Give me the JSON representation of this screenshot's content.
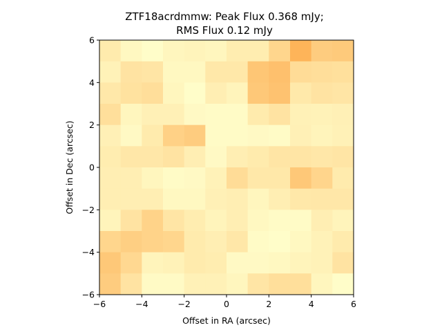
{
  "chart_data": {
    "type": "heatmap",
    "title_line1": "ZTF18acrdmmw: Peak Flux 0.368 mJy;",
    "title_line2": "RMS Flux 0.12 mJy",
    "xlabel": "Offset in RA (arcsec)",
    "ylabel": "Offset in Dec (arcsec)",
    "xlim": [
      -6,
      6
    ],
    "ylim": [
      -6,
      6
    ],
    "xticks": [
      -6,
      -4,
      -2,
      0,
      2,
      4,
      6
    ],
    "yticks": [
      -6,
      -4,
      -2,
      0,
      2,
      4,
      6
    ],
    "xtick_labels": [
      "−6",
      "−4",
      "−2",
      "0",
      "2",
      "4",
      "6"
    ],
    "ytick_labels": [
      "−6",
      "−4",
      "−2",
      "0",
      "2",
      "4",
      "6"
    ],
    "colormap": "YlOrBr-like (pale yellow = low, orange = high)",
    "colors": {
      "low": "#ffffcc",
      "high": "#fea340"
    },
    "grid_size": 12,
    "cell_size_arcsec": 1,
    "note_rows": "rows ordered from top (Dec +6..+5) to bottom (Dec -5..-6); columns from RA -6 to +6",
    "values": [
      [
        0.22,
        0.08,
        0.02,
        0.1,
        0.12,
        0.1,
        0.2,
        0.2,
        0.45,
        0.82,
        0.55
      ],
      [
        0.14,
        0.3,
        0.28,
        0.08,
        0.08,
        0.25,
        0.25,
        0.62,
        0.68,
        0.38,
        0.36
      ],
      [
        0.25,
        0.32,
        0.36,
        0.1,
        0.02,
        0.18,
        0.12,
        0.6,
        0.66,
        0.24,
        0.3
      ],
      [
        0.35,
        0.1,
        0.16,
        0.16,
        0.06,
        0.04,
        0.04,
        0.22,
        0.3,
        0.15,
        0.14
      ],
      [
        0.16,
        0.06,
        0.22,
        0.5,
        0.55,
        0.04,
        0.04,
        0.06,
        0.04,
        0.16,
        0.12
      ],
      [
        0.2,
        0.26,
        0.26,
        0.3,
        0.18,
        0.06,
        0.18,
        0.22,
        0.28,
        0.28,
        0.26
      ],
      [
        0.18,
        0.18,
        0.1,
        0.04,
        0.06,
        0.14,
        0.38,
        0.25,
        0.25,
        0.6,
        0.46
      ],
      [
        0.18,
        0.18,
        0.18,
        0.08,
        0.08,
        0.16,
        0.18,
        0.1,
        0.18,
        0.25,
        0.26
      ],
      [
        0.12,
        0.3,
        0.48,
        0.28,
        0.2,
        0.12,
        0.18,
        0.08,
        0.04,
        0.04,
        0.18
      ],
      [
        0.45,
        0.52,
        0.48,
        0.45,
        0.22,
        0.18,
        0.26,
        0.04,
        0.02,
        0.08,
        0.14
      ],
      [
        0.6,
        0.42,
        0.12,
        0.14,
        0.22,
        0.2,
        0.06,
        0.06,
        0.08,
        0.12,
        0.14
      ],
      [
        0.55,
        0.3,
        0.05,
        0.05,
        0.15,
        0.15,
        0.1,
        0.28,
        0.35,
        0.35,
        0.1
      ]
    ],
    "values_col12": [
      0.58,
      0.34,
      0.28,
      0.16,
      0.15,
      0.28,
      0.22,
      0.26,
      0.12,
      0.22,
      0.3,
      0.02
    ]
  }
}
